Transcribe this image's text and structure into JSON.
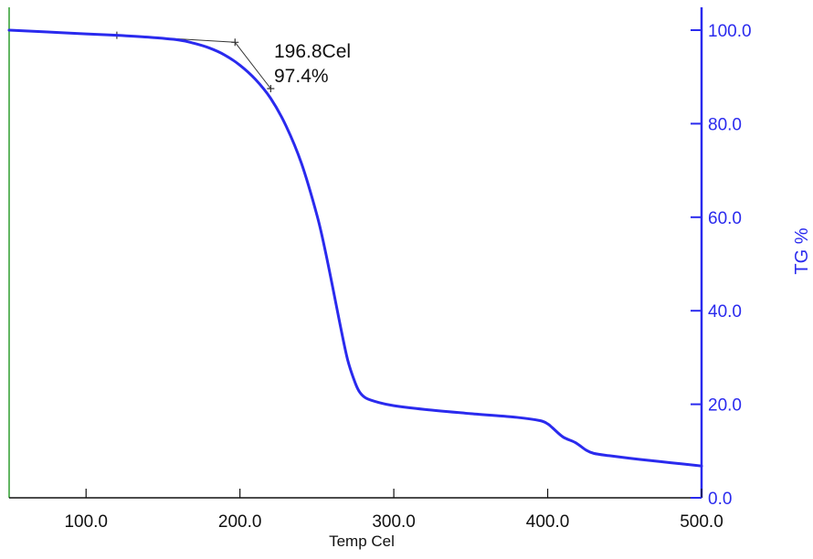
{
  "chart_data": {
    "type": "line",
    "xlabel": "Temp Cel",
    "ylabel": "TG %",
    "xlim": [
      50,
      500
    ],
    "ylim": [
      0,
      105
    ],
    "x_ticks": [
      100,
      200,
      300,
      400,
      500
    ],
    "x_tick_labels": [
      "100.0",
      "200.0",
      "300.0",
      "400.0",
      "500.0"
    ],
    "y_ticks": [
      0,
      20,
      40,
      60,
      80,
      100
    ],
    "y_tick_labels": [
      "0.0",
      "20.0",
      "40.0",
      "60.0",
      "80.0",
      "100.0"
    ],
    "y_axis_side": "right",
    "grid": false,
    "colors": {
      "series": "#2a2aee",
      "right_axis": "#2a2aee",
      "left_axis": "#2e9e2e",
      "bottom_axis": "#111111",
      "construction": "#333333"
    },
    "series": [
      {
        "x": [
          50,
          75,
          100,
          120,
          140,
          160,
          170,
          180,
          190,
          200,
          210,
          220,
          230,
          240,
          250,
          255,
          260,
          265,
          270,
          275,
          278,
          282,
          290,
          300,
          320,
          350,
          380,
          395,
          400,
          403,
          410,
          418,
          425,
          430,
          440,
          460,
          480,
          500
        ],
        "values": [
          100,
          99.6,
          99.2,
          98.9,
          98.5,
          97.9,
          97.2,
          96.2,
          94.7,
          92.5,
          89.5,
          85.4,
          79.5,
          71.5,
          60.5,
          53.5,
          45.5,
          37.2,
          29.5,
          24.5,
          22.5,
          21.3,
          20.4,
          19.7,
          18.9,
          18.0,
          17.2,
          16.5,
          15.8,
          15.0,
          13.0,
          11.8,
          10.2,
          9.5,
          9.0,
          8.2,
          7.5,
          6.8
        ]
      }
    ],
    "onset_construction": {
      "baseline": {
        "x": [
          120,
          196.8
        ],
        "y": [
          98.9,
          97.4
        ]
      },
      "tangent": {
        "x": [
          196.8,
          220
        ],
        "y": [
          97.4,
          87.5
        ]
      },
      "markers": [
        {
          "x": 120,
          "y": 98.9
        },
        {
          "x": 196.8,
          "y": 97.4
        },
        {
          "x": 220,
          "y": 87.5
        }
      ]
    },
    "annotations": {
      "onset_temperature": "196.8Cel",
      "onset_mass": "97.4%"
    }
  }
}
